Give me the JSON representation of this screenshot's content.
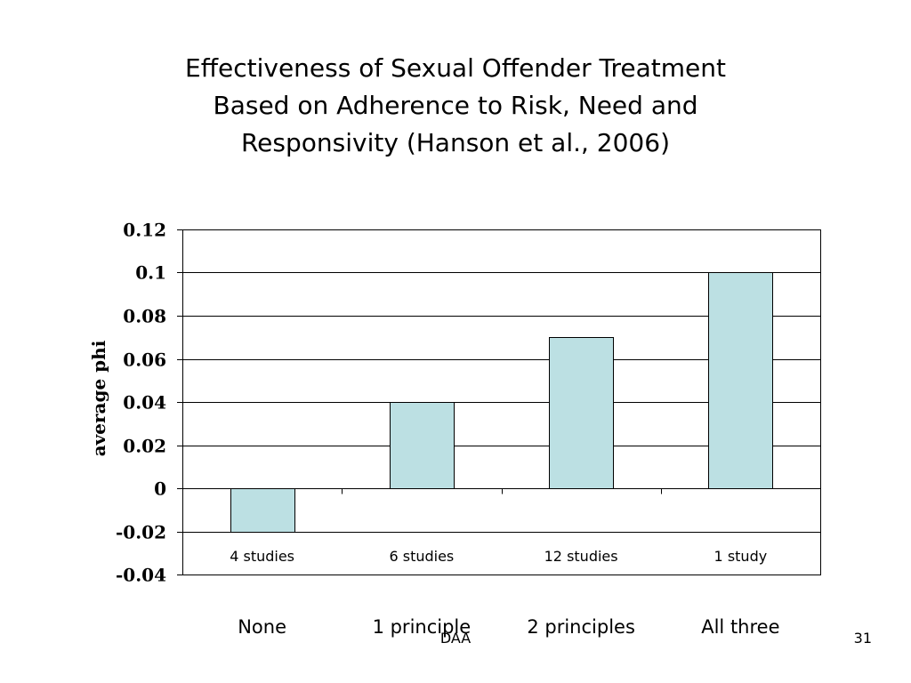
{
  "slide": {
    "title_lines": [
      "Effectiveness of Sexual Offender Treatment",
      "Based on Adherence to Risk, Need and",
      "Responsivity (Hanson et al., 2006)"
    ],
    "footer_left": "DAA",
    "page_number": "31"
  },
  "chart_data": {
    "type": "bar",
    "title": "Effectiveness of Sexual Offender Treatment Based on Adherence to Risk, Need and Responsivity (Hanson et al., 2006)",
    "categories": [
      "None",
      "1 principle",
      "2 principles",
      "All three"
    ],
    "bar_labels": [
      "4 studies",
      "6 studies",
      "12 studies",
      "1 study"
    ],
    "values": [
      -0.02,
      0.04,
      0.07,
      0.1
    ],
    "ylabel": "average phi",
    "xlabel": "",
    "ylim": [
      -0.04,
      0.12
    ],
    "yticks": [
      -0.04,
      -0.02,
      0,
      0.02,
      0.04,
      0.06,
      0.08,
      0.1,
      0.12
    ],
    "ytick_labels": [
      "-0.04",
      "-0.02",
      "0",
      "0.02",
      "0.04",
      "0.06",
      "0.08",
      "0.1",
      "0.12"
    ],
    "grid": true,
    "legend": "none",
    "colors": {
      "bar_fill": "#BCE0E3",
      "bar_stroke": "#000000",
      "grid": "#000000"
    }
  }
}
